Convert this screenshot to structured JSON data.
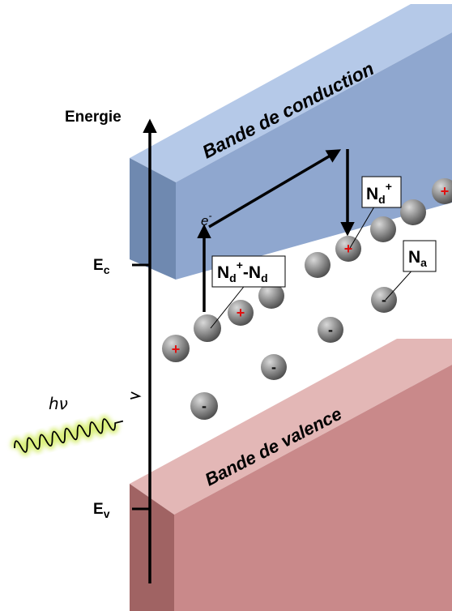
{
  "axis": {
    "label": "Energie"
  },
  "levels": {
    "ec_main": "E",
    "ec_sub": "c",
    "ev_main": "E",
    "ev_sub": "v"
  },
  "bands": {
    "conduction": "Bande de conduction",
    "valence": "Bande de valence"
  },
  "photon": {
    "label": "hν"
  },
  "electron": {
    "main": "e",
    "sup": "-"
  },
  "boxes": {
    "nd_plus": {
      "main": "N",
      "sub": "d",
      "sup": "+"
    },
    "nd_pair": {
      "main1": "N",
      "sub1": "d",
      "sup1": "+",
      "sep": "-N",
      "sub2": "d"
    },
    "na": {
      "main": "N",
      "sub": "a"
    }
  },
  "charges": {
    "plus": "+",
    "minus": "-"
  },
  "colors": {
    "conduction_front": "#8fa7cf",
    "conduction_top": "#b5c9e8",
    "conduction_side": "#6f89b0",
    "valence_front": "#c9898a",
    "valence_top": "#e3b7b6",
    "valence_side": "#a06363",
    "ion": "#808080",
    "plus_sign": "#e01010",
    "photon_glow": "#d9ef7a"
  }
}
